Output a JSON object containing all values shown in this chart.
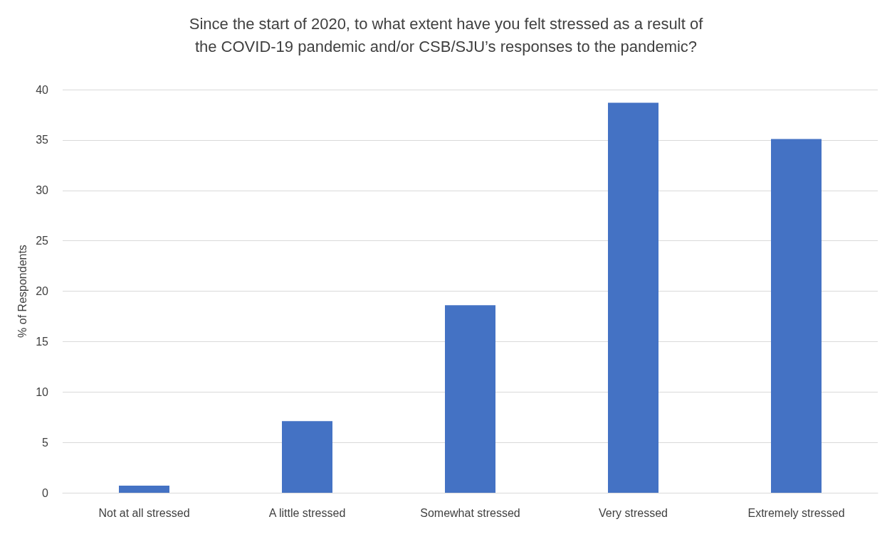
{
  "chart_data": {
    "type": "bar",
    "title": "Since the start of 2020, to what extent have you felt stressed as a result of\nthe COVID-19 pandemic and/or CSB/SJU’s responses to the pandemic?",
    "ylabel": "% of Respondents",
    "categories": [
      "Not at all stressed",
      "A little stressed",
      "Somewhat stressed",
      "Very stressed",
      "Extremely stressed"
    ],
    "values": [
      0.7,
      7.1,
      18.6,
      38.7,
      35.1
    ],
    "color": "#4472c4",
    "ylim": [
      0,
      40
    ],
    "yticks": [
      0,
      5,
      10,
      15,
      20,
      25,
      30,
      35,
      40
    ],
    "grid": "y"
  }
}
